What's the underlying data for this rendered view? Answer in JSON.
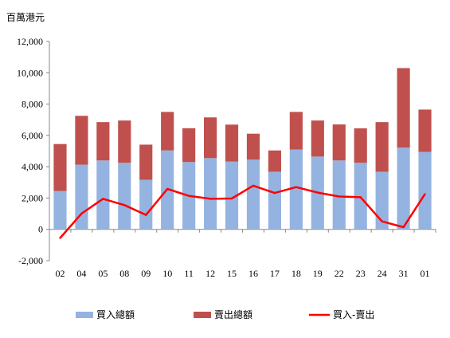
{
  "chart_data": {
    "type": "bar",
    "subtype": "stacked-bar-with-line",
    "unit_label": "百萬港元",
    "categories": [
      "02",
      "04",
      "05",
      "08",
      "09",
      "10",
      "11",
      "12",
      "15",
      "16",
      "17",
      "18",
      "19",
      "22",
      "23",
      "24",
      "31",
      "01"
    ],
    "series": [
      {
        "name": "買入總額",
        "kind": "bar",
        "stack": "total",
        "color": "#95B3E0",
        "values": [
          2450,
          4130,
          4400,
          4250,
          3170,
          5040,
          4300,
          4550,
          4330,
          4450,
          3680,
          5100,
          4650,
          4400,
          4250,
          3680,
          5220,
          4950
        ]
      },
      {
        "name": "賣出總額",
        "kind": "bar",
        "stack": "total",
        "color": "#C0504D",
        "values": [
          3000,
          3120,
          2450,
          2700,
          2240,
          2460,
          2160,
          2600,
          2360,
          1660,
          1360,
          2400,
          2300,
          2300,
          2200,
          3170,
          5080,
          2700
        ]
      },
      {
        "name": "買入-賣出",
        "kind": "line",
        "color": "#FF0000",
        "values": [
          -550,
          1010,
          1950,
          1550,
          920,
          2580,
          2140,
          1950,
          1970,
          2790,
          2320,
          2700,
          2350,
          2100,
          2050,
          510,
          140,
          2250
        ]
      }
    ],
    "ylim": [
      -2000,
      12000
    ],
    "yticks": [
      "-2,000",
      "0",
      "2,000",
      "4,000",
      "6,000",
      "8,000",
      "10,000",
      "12,000"
    ],
    "ytick_values": [
      -2000,
      0,
      2000,
      4000,
      6000,
      8000,
      10000,
      12000
    ],
    "grid": false,
    "legend_position": "bottom"
  }
}
